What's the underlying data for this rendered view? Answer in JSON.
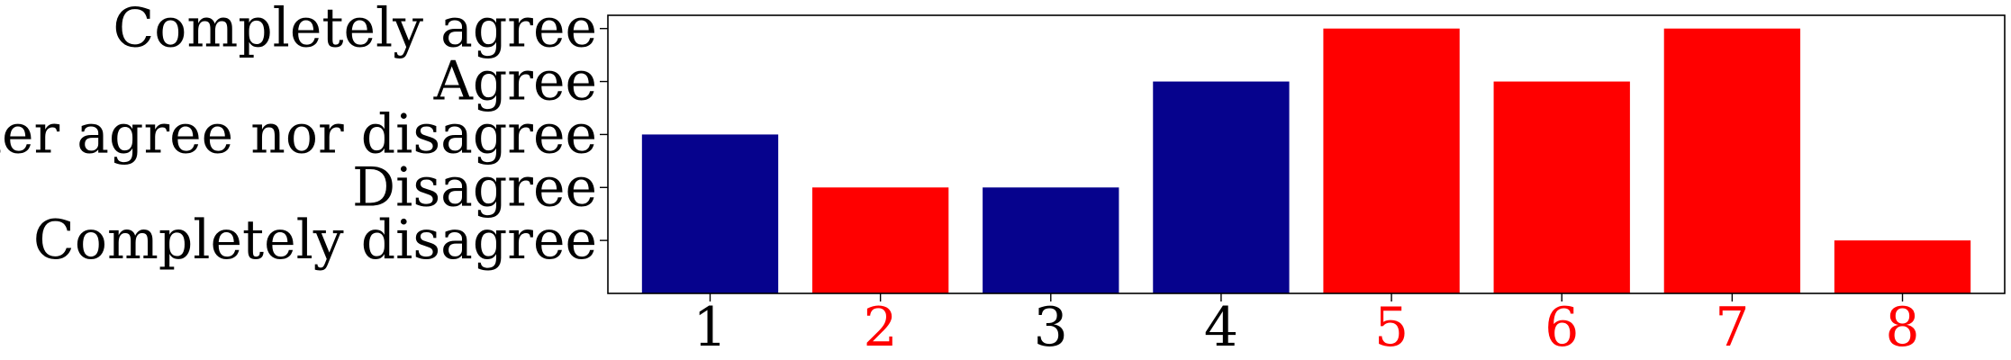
{
  "chart_data": {
    "type": "bar",
    "categories": [
      "1",
      "2",
      "3",
      "4",
      "5",
      "6",
      "7",
      "8"
    ],
    "values": [
      3,
      2,
      2,
      4,
      5,
      4,
      5,
      1
    ],
    "bar_colors": [
      "#06038D",
      "#FF0000",
      "#06038D",
      "#06038D",
      "#FF0000",
      "#FF0000",
      "#FF0000",
      "#FF0000"
    ],
    "x_tick_colors": [
      "#000000",
      "#FF0000",
      "#000000",
      "#000000",
      "#FF0000",
      "#FF0000",
      "#FF0000",
      "#FF0000"
    ],
    "y_ticks": [
      {
        "value": 1,
        "label": "Completely disagree"
      },
      {
        "value": 2,
        "label": "Disagree"
      },
      {
        "value": 3,
        "label": "Neither agree nor disagree"
      },
      {
        "value": 4,
        "label": "Agree"
      },
      {
        "value": 5,
        "label": "Completely agree"
      }
    ],
    "title": "",
    "xlabel": "",
    "ylabel": "",
    "ylim": [
      0,
      5.25
    ],
    "grid": false
  }
}
